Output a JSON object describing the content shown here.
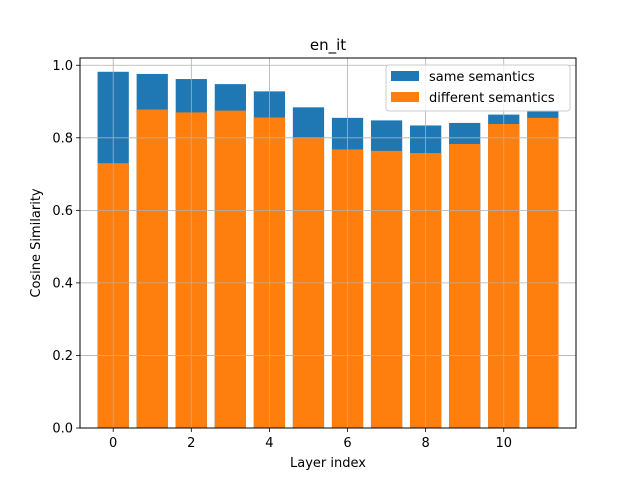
{
  "chart_data": {
    "type": "bar",
    "title": "en_it",
    "xlabel": "Layer index",
    "ylabel": "Cosine Similarity",
    "x": [
      0,
      1,
      2,
      3,
      4,
      5,
      6,
      7,
      8,
      9,
      10,
      11
    ],
    "xlim": [
      -0.85,
      11.85
    ],
    "ylim": [
      0,
      1.02
    ],
    "xticks": [
      "0",
      "2",
      "4",
      "6",
      "8",
      "10"
    ],
    "yticks": [
      "0.0",
      "0.2",
      "0.4",
      "0.6",
      "0.8",
      "1.0"
    ],
    "grid": true,
    "legend_position": "top-right",
    "series": [
      {
        "name": "same semantics",
        "color": "#1f77b4",
        "values": [
          0.982,
          0.976,
          0.962,
          0.948,
          0.928,
          0.884,
          0.855,
          0.848,
          0.834,
          0.841,
          0.864,
          0.874
        ]
      },
      {
        "name": "different semantics",
        "color": "#ff7f0e",
        "values": [
          0.73,
          0.878,
          0.87,
          0.875,
          0.856,
          0.8,
          0.768,
          0.764,
          0.758,
          0.783,
          0.838,
          0.855
        ]
      }
    ]
  }
}
